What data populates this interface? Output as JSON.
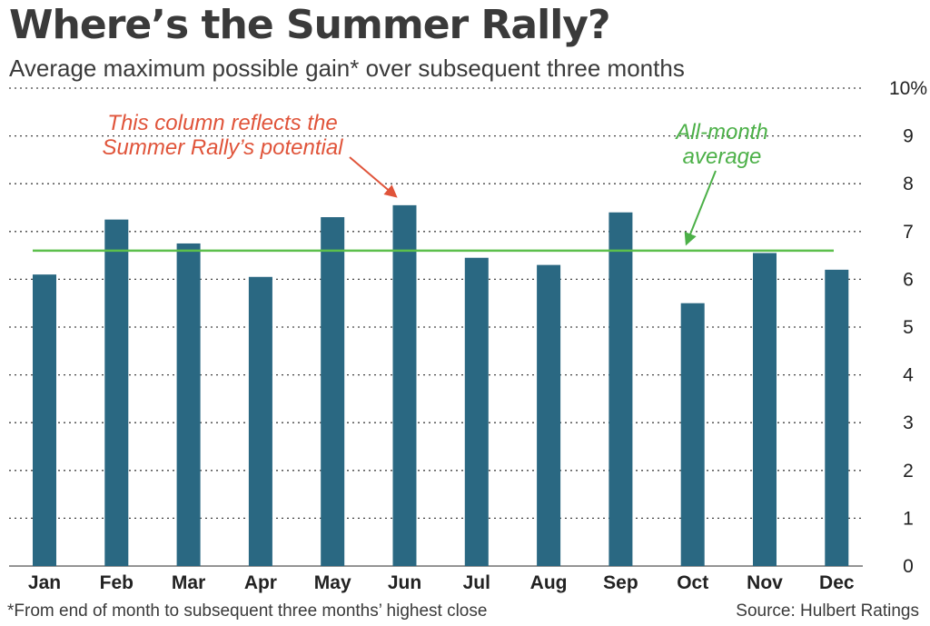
{
  "header": {
    "title": "Where’s the Summer Rally?",
    "subtitle": "Average maximum possible gain* over subsequent three months"
  },
  "footer": {
    "footnote": "*From end of month to subsequent three months’ highest close",
    "source": "Source: Hulbert Ratings"
  },
  "colors": {
    "bar": "#2a6882",
    "average_line": "#5cbf4c",
    "annotation_red": "#e0543a",
    "annotation_green": "#4cb048",
    "grid": "#444444"
  },
  "chart_data": {
    "type": "bar",
    "title": "Where’s the Summer Rally?",
    "subtitle": "Average maximum possible gain* over subsequent three months",
    "categories": [
      "Jan",
      "Feb",
      "Mar",
      "Apr",
      "May",
      "Jun",
      "Jul",
      "Aug",
      "Sep",
      "Oct",
      "Nov",
      "Dec"
    ],
    "values": [
      6.1,
      7.25,
      6.75,
      6.05,
      7.3,
      7.55,
      6.45,
      6.3,
      7.4,
      5.5,
      6.55,
      6.2
    ],
    "ylim": [
      0,
      10
    ],
    "yticks": [
      0,
      1,
      2,
      3,
      4,
      5,
      6,
      7,
      8,
      9,
      10
    ],
    "ytick_labels": [
      "0",
      "1",
      "2",
      "3",
      "4",
      "5",
      "6",
      "7",
      "8",
      "9",
      "10%"
    ],
    "yaxis_position": "right",
    "grid": "horizontal-dotted",
    "reference_line": {
      "value": 6.6
    },
    "annotations": [
      {
        "lines": [
          "This column reflects the",
          "Summer Rally’s potential"
        ],
        "target_category": "Jun"
      },
      {
        "lines": [
          "All-month",
          "average"
        ],
        "target": "reference_line"
      }
    ]
  }
}
